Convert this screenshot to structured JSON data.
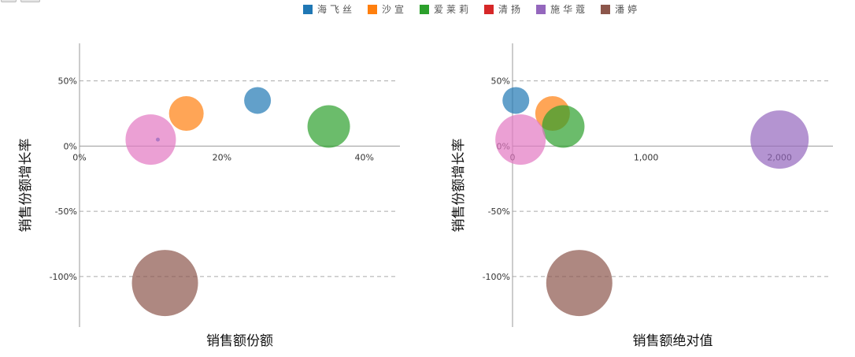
{
  "legend": {
    "position": "top",
    "items": [
      {
        "label": "海飞丝",
        "color": "#1f77b4"
      },
      {
        "label": "沙宣",
        "color": "#ff7f0e"
      },
      {
        "label": "爱莱莉",
        "color": "#2ca02c"
      },
      {
        "label": "清扬",
        "color": "#d62728"
      },
      {
        "label": "施华蔻",
        "color": "#9467bd"
      },
      {
        "label": "潘婷",
        "color": "#8c564b"
      }
    ]
  },
  "chart_data": [
    {
      "type": "scatter",
      "xlabel": "销售额份额",
      "ylabel": "销售份额增长率",
      "xlim": [
        0,
        45
      ],
      "ylim": [
        -140,
        80
      ],
      "grid": true,
      "xticks": [
        {
          "value": 0,
          "label": "0%"
        },
        {
          "value": 20,
          "label": "20%"
        },
        {
          "value": 40,
          "label": "40%"
        }
      ],
      "yticks": [
        {
          "value": 50,
          "label": "50%"
        },
        {
          "value": 0,
          "label": "0%"
        },
        {
          "value": -50,
          "label": "-50%"
        },
        {
          "value": -100,
          "label": "-100%"
        }
      ],
      "series": [
        {
          "name": "海飞丝",
          "color": "#1f77b4",
          "x": 25,
          "y": 35
        },
        {
          "name": "沙宣",
          "color": "#ff7f0e",
          "x": 15,
          "y": 25
        },
        {
          "name": "爱莱莉",
          "color": "#2ca02c",
          "x": 35,
          "y": 15
        },
        {
          "color": "#e377c2",
          "x": 10,
          "y": 5
        },
        {
          "name": "施华蔻",
          "color": "#9467bd",
          "x": 11,
          "y": 5
        },
        {
          "name": "潘婷",
          "color": "#8c564b",
          "x": 12,
          "y": -105
        }
      ]
    },
    {
      "type": "scatter",
      "xlabel": "销售额绝对值",
      "ylabel": "销售份额增长率",
      "xlim": [
        0,
        2400
      ],
      "ylim": [
        -140,
        80
      ],
      "grid": true,
      "xticks": [
        {
          "value": 0,
          "label": "0"
        },
        {
          "value": 1000,
          "label": "1,000"
        },
        {
          "value": 2000,
          "label": "2,000"
        }
      ],
      "yticks": [
        {
          "value": 50,
          "label": "50%"
        },
        {
          "value": 0,
          "label": "0%"
        },
        {
          "value": -50,
          "label": "-50%"
        },
        {
          "value": -100,
          "label": "-100%"
        }
      ],
      "series": [
        {
          "name": "海飞丝",
          "color": "#1f77b4",
          "x": 25,
          "y": 35
        },
        {
          "name": "沙宣",
          "color": "#ff7f0e",
          "x": 300,
          "y": 25
        },
        {
          "name": "爱莱莉",
          "color": "#2ca02c",
          "x": 380,
          "y": 15
        },
        {
          "color": "#e377c2",
          "x": 60,
          "y": 5
        },
        {
          "name": "施华蔻",
          "color": "#9467bd",
          "x": 2000,
          "y": 5
        },
        {
          "name": "潘婷",
          "color": "#8c564b",
          "x": 500,
          "y": -105
        }
      ]
    }
  ]
}
